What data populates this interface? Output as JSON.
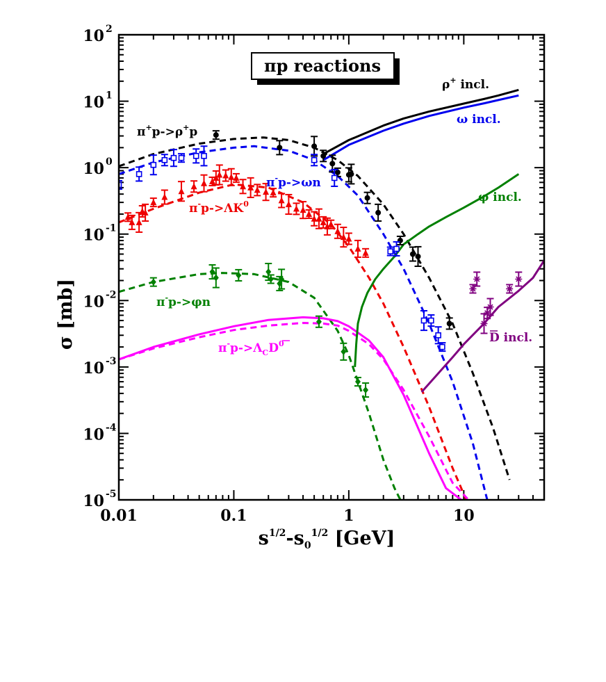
{
  "chart_data": {
    "type": "line",
    "title": "πp reactions",
    "xlabel": {
      "base": "s",
      "sup1": "1/2",
      "mid": "-s",
      "sub": "0",
      "sup2": "1/2",
      "unit": " [GeV]"
    },
    "ylabel": "σ [mb]",
    "xscale": "log",
    "yscale": "log",
    "xlim": [
      0.01,
      50
    ],
    "ylim": [
      1e-05,
      100
    ],
    "x_ticks": [
      {
        "value": 0.01,
        "label": "0.01"
      },
      {
        "value": 0.1,
        "label": "0.1"
      },
      {
        "value": 1,
        "label": "1"
      },
      {
        "value": 10,
        "label": "10"
      }
    ],
    "y_ticks": [
      {
        "value": 100,
        "exp": "2"
      },
      {
        "value": 10,
        "exp": "1"
      },
      {
        "value": 1,
        "exp": "0"
      },
      {
        "value": 0.1,
        "exp": "-1"
      },
      {
        "value": 0.01,
        "exp": "-2"
      },
      {
        "value": 0.001,
        "exp": "-3"
      },
      {
        "value": 0.0001,
        "exp": "-4"
      },
      {
        "value": 1e-05,
        "exp": "-5"
      }
    ],
    "y_tick_base": "10",
    "series": [
      {
        "name": "π+p->ρ+p",
        "color": "#000000",
        "style": "dashed",
        "x": [
          0.01,
          0.02,
          0.05,
          0.1,
          0.18,
          0.3,
          0.5,
          0.8,
          1.2,
          2,
          3,
          5,
          8,
          12,
          18,
          25
        ],
        "y": [
          1.05,
          1.6,
          2.3,
          2.7,
          2.85,
          2.6,
          2.0,
          1.3,
          0.75,
          0.28,
          0.1,
          0.022,
          0.0045,
          0.0008,
          0.00012,
          2e-05
        ]
      },
      {
        "name": "π-p->ωn",
        "color": "#0000ee",
        "style": "dashed",
        "x": [
          0.01,
          0.02,
          0.05,
          0.1,
          0.15,
          0.3,
          0.5,
          0.8,
          1.2,
          2,
          3,
          5,
          8,
          12,
          16
        ],
        "y": [
          0.8,
          1.2,
          1.7,
          2.0,
          2.1,
          1.8,
          1.3,
          0.75,
          0.38,
          0.1,
          0.03,
          0.0045,
          0.0006,
          7e-05,
          1e-05
        ]
      },
      {
        "name": "π-p->ΛK0",
        "color": "#ee0000",
        "style": "dashed",
        "x": [
          0.01,
          0.02,
          0.05,
          0.1,
          0.2,
          0.4,
          0.7,
          1,
          1.5,
          2,
          3,
          5,
          8,
          10.5
        ],
        "y": [
          0.15,
          0.24,
          0.42,
          0.56,
          0.5,
          0.3,
          0.14,
          0.065,
          0.022,
          0.009,
          0.002,
          0.00025,
          3e-05,
          1e-05
        ]
      },
      {
        "name": "π-p->φn",
        "color": "#008000",
        "style": "dashed",
        "x": [
          0.01,
          0.02,
          0.05,
          0.08,
          0.15,
          0.3,
          0.5,
          0.8,
          1,
          1.5,
          2,
          2.5,
          3
        ],
        "y": [
          0.0135,
          0.019,
          0.025,
          0.026,
          0.025,
          0.019,
          0.011,
          0.0035,
          0.0015,
          0.0002,
          4e-05,
          1.5e-05,
          8e-06
        ]
      },
      {
        "name": "π-p->ΛcD0",
        "color": "#ff00ff",
        "style": "dashed",
        "x": [
          0.01,
          0.02,
          0.05,
          0.1,
          0.2,
          0.4,
          0.6,
          0.8,
          1,
          1.5,
          2,
          3,
          5,
          8,
          11
        ],
        "y": [
          0.0013,
          0.0019,
          0.0028,
          0.0036,
          0.0042,
          0.0046,
          0.0045,
          0.0042,
          0.0035,
          0.0022,
          0.0013,
          0.00045,
          9e-05,
          1.8e-05,
          1e-05
        ]
      },
      {
        "name": "π-p->ΛcD0 (solid)",
        "color": "#ff00ff",
        "style": "solid",
        "x": [
          0.01,
          0.02,
          0.05,
          0.1,
          0.2,
          0.4,
          0.6,
          0.8,
          1,
          1.5,
          2,
          3,
          5,
          7,
          9.5
        ],
        "y": [
          0.0013,
          0.002,
          0.0031,
          0.0041,
          0.0051,
          0.0056,
          0.0054,
          0.0049,
          0.0041,
          0.0025,
          0.0014,
          0.00038,
          5e-05,
          1.5e-05,
          1e-05
        ]
      },
      {
        "name": "ρ+ incl.",
        "color": "#000000",
        "style": "solid",
        "x": [
          0.6,
          1,
          2,
          3,
          5,
          10,
          15,
          20,
          30
        ],
        "y": [
          1.6,
          2.6,
          4.3,
          5.5,
          7.0,
          9.2,
          10.8,
          12.2,
          14.8
        ]
      },
      {
        "name": "ω incl.",
        "color": "#0000ee",
        "style": "solid",
        "x": [
          0.6,
          1,
          2,
          3,
          5,
          10,
          15,
          20,
          30
        ],
        "y": [
          1.3,
          2.2,
          3.6,
          4.6,
          6.0,
          8.0,
          9.3,
          10.4,
          12.2
        ]
      },
      {
        "name": "φ incl.",
        "color": "#008000",
        "style": "solid",
        "x": [
          1.13,
          1.16,
          1.2,
          1.3,
          1.45,
          1.7,
          2,
          2.5,
          3,
          4,
          5,
          7,
          10,
          15,
          20,
          30
        ],
        "y": [
          0.001,
          0.0022,
          0.0045,
          0.008,
          0.013,
          0.021,
          0.03,
          0.046,
          0.07,
          0.1,
          0.13,
          0.18,
          0.25,
          0.37,
          0.5,
          0.8
        ]
      },
      {
        "name": "D incl.",
        "color": "#800080",
        "style": "solid",
        "x": [
          4.3,
          6,
          8,
          10,
          15,
          20,
          30,
          40,
          50
        ],
        "y": [
          0.00042,
          0.0008,
          0.0014,
          0.0022,
          0.0045,
          0.008,
          0.014,
          0.022,
          0.04
        ]
      }
    ],
    "points": [
      {
        "series": "π+p->ρ+p",
        "color": "#000000",
        "marker": "filled",
        "x": [
          0.07,
          0.25,
          0.5,
          0.6,
          0.72,
          0.8,
          1.0,
          1.05,
          1.45,
          1.8,
          2.8,
          3.6,
          4.0,
          7.5
        ],
        "y": [
          3.1,
          2.0,
          2.1,
          1.5,
          1.15,
          0.85,
          0.78,
          0.8,
          0.35,
          0.21,
          0.08,
          0.05,
          0.046,
          0.0045
        ]
      },
      {
        "series": "π-p->ωn",
        "color": "#0000ee",
        "marker": "open",
        "x": [
          0.01,
          0.015,
          0.02,
          0.025,
          0.03,
          0.035,
          0.047,
          0.055,
          0.5,
          0.75,
          2.3,
          2.6,
          4.5,
          5.2,
          6.0,
          6.5
        ],
        "y": [
          0.55,
          0.8,
          1.1,
          1.3,
          1.4,
          1.4,
          1.5,
          1.5,
          1.3,
          0.7,
          0.055,
          0.06,
          0.005,
          0.005,
          0.003,
          0.002
        ]
      },
      {
        "series": "π-p->ΛK0",
        "color": "#ee0000",
        "marker": "triangle",
        "x": [
          0.012,
          0.013,
          0.015,
          0.016,
          0.017,
          0.02,
          0.025,
          0.035,
          0.045,
          0.055,
          0.065,
          0.07,
          0.075,
          0.085,
          0.095,
          0.105,
          0.12,
          0.14,
          0.16,
          0.19,
          0.22,
          0.26,
          0.3,
          0.35,
          0.4,
          0.45,
          0.5,
          0.55,
          0.6,
          0.65,
          0.7,
          0.8,
          0.9,
          1.0,
          1.2,
          1.4
        ],
        "y": [
          0.18,
          0.15,
          0.15,
          0.22,
          0.21,
          0.3,
          0.36,
          0.44,
          0.52,
          0.58,
          0.62,
          0.7,
          0.78,
          0.76,
          0.72,
          0.7,
          0.52,
          0.5,
          0.46,
          0.43,
          0.42,
          0.32,
          0.28,
          0.24,
          0.23,
          0.2,
          0.17,
          0.17,
          0.15,
          0.13,
          0.14,
          0.11,
          0.09,
          0.085,
          0.06,
          0.052
        ]
      },
      {
        "series": "π-p->φn",
        "color": "#008000",
        "marker": "diamond",
        "x": [
          0.02,
          0.065,
          0.07,
          0.11,
          0.2,
          0.21,
          0.25,
          0.26,
          0.55,
          0.9,
          1.2,
          1.4
        ],
        "y": [
          0.019,
          0.027,
          0.022,
          0.024,
          0.027,
          0.021,
          0.018,
          0.021,
          0.0048,
          0.0017,
          0.0006,
          0.00045
        ]
      },
      {
        "series": "D incl.",
        "color": "#800080",
        "marker": "star",
        "x": [
          12,
          13,
          15,
          16,
          17,
          25,
          30
        ],
        "y": [
          0.015,
          0.021,
          0.0045,
          0.0065,
          0.008,
          0.015,
          0.021
        ]
      }
    ],
    "annotations": [
      {
        "key": "rho_incl",
        "color": "#000000",
        "parts": [
          [
            "ρ",
            "n"
          ],
          [
            "+",
            "sup"
          ],
          [
            " incl.",
            "n"
          ]
        ]
      },
      {
        "key": "omega_incl",
        "color": "#0000ee",
        "parts": [
          [
            "ω incl.",
            "n"
          ]
        ]
      },
      {
        "key": "phi_incl",
        "color": "#008000",
        "parts": [
          [
            "φ incl.",
            "n"
          ]
        ]
      },
      {
        "key": "dbar_incl",
        "color": "#800080",
        "parts": [
          [
            "D incl.",
            "n"
          ]
        ]
      },
      {
        "key": "rho_excl",
        "color": "#000000",
        "parts": [
          [
            "π",
            "n"
          ],
          [
            "+",
            "sup"
          ],
          [
            "p->ρ",
            "n"
          ],
          [
            "+",
            "sup"
          ],
          [
            "p",
            "n"
          ]
        ]
      },
      {
        "key": "omega_excl",
        "color": "#0000ee",
        "parts": [
          [
            "π",
            "n"
          ],
          [
            "-",
            "sup"
          ],
          [
            "p->ωn",
            "n"
          ]
        ]
      },
      {
        "key": "lambda_excl",
        "color": "#ee0000",
        "parts": [
          [
            "π",
            "n"
          ],
          [
            "-",
            "sup"
          ],
          [
            "p->ΛK",
            "n"
          ],
          [
            "0",
            "sup"
          ]
        ]
      },
      {
        "key": "phi_excl",
        "color": "#008000",
        "parts": [
          [
            "π",
            "n"
          ],
          [
            "-",
            "sup"
          ],
          [
            "p->φn",
            "n"
          ]
        ]
      },
      {
        "key": "lambdac_excl",
        "color": "#ff00ff",
        "parts": [
          [
            "π",
            "n"
          ],
          [
            "-",
            "sup"
          ],
          [
            "p->Λ",
            "n"
          ],
          [
            "C",
            "sub"
          ],
          [
            "D",
            "n"
          ],
          [
            "0",
            "sup"
          ]
        ]
      }
    ]
  }
}
